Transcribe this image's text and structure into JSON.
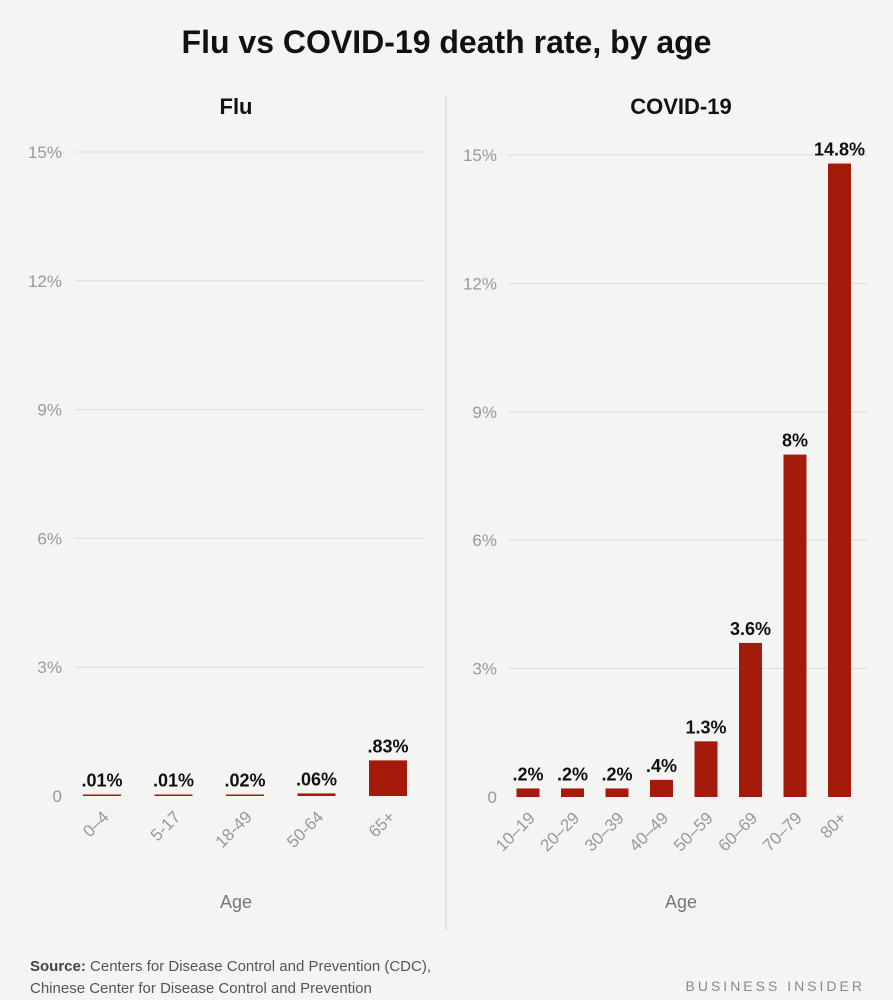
{
  "title": "Flu vs COVID-19 death rate, by age",
  "source_label": "Source:",
  "source_line1": "Centers for Disease Control and Prevention (CDC),",
  "source_line2": "Chinese Center for Disease Control and Prevention",
  "brand": "BUSINESS INSIDER",
  "colors": {
    "bar": "#a51b0b",
    "grid": "#dddddd",
    "axis_text": "#999999",
    "label_text": "#111111",
    "divider": "#cccccc"
  },
  "chart_data": [
    {
      "type": "bar",
      "title": "Flu",
      "xlabel": "Age",
      "ylabel": "",
      "ylim": [
        0,
        15
      ],
      "yticks": [
        0,
        3,
        6,
        9,
        12,
        15
      ],
      "ytick_labels": [
        "0",
        "3%",
        "6%",
        "9%",
        "12%",
        "15%"
      ],
      "categories": [
        "0–4",
        "5-17",
        "18-49",
        "50-64",
        "65+"
      ],
      "values": [
        0.01,
        0.01,
        0.02,
        0.06,
        0.83
      ],
      "data_labels": [
        ".01%",
        ".01%",
        ".02%",
        ".06%",
        ".83%"
      ],
      "grid": true
    },
    {
      "type": "bar",
      "title": "COVID-19",
      "xlabel": "Age",
      "ylabel": "",
      "ylim": [
        0,
        15
      ],
      "yticks": [
        0,
        3,
        6,
        9,
        12,
        15
      ],
      "ytick_labels": [
        "0",
        "3%",
        "6%",
        "9%",
        "12%",
        "15%"
      ],
      "categories": [
        "10–19",
        "20–29",
        "30–39",
        "40–49",
        "50–59",
        "60–69",
        "70–79",
        "80+"
      ],
      "values": [
        0.2,
        0.2,
        0.2,
        0.4,
        1.3,
        3.6,
        8,
        14.8
      ],
      "data_labels": [
        ".2%",
        ".2%",
        ".2%",
        ".4%",
        "1.3%",
        "3.6%",
        "8%",
        "14.8%"
      ],
      "grid": true
    }
  ]
}
